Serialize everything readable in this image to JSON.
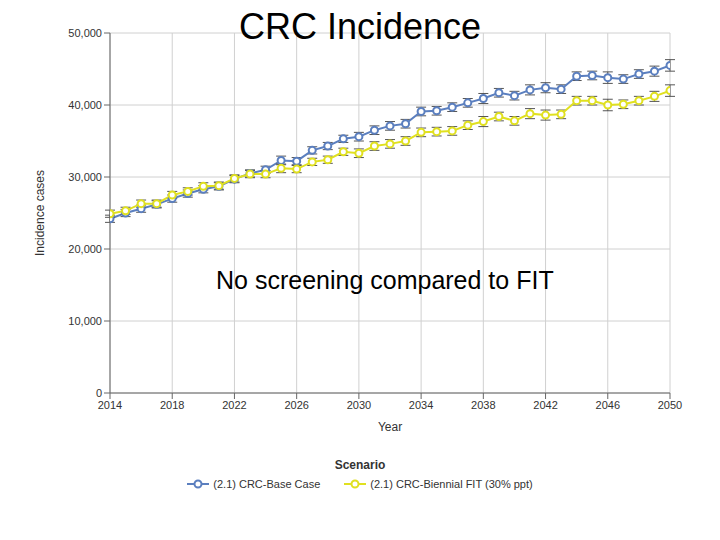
{
  "chart_data": {
    "type": "line",
    "title": "CRC Incidence",
    "annotation": "No screening compared to FIT",
    "x_label": "Year",
    "y_label": "Incidence cases",
    "legend_title": "Scenario",
    "x": [
      2014,
      2015,
      2016,
      2017,
      2018,
      2019,
      2020,
      2021,
      2022,
      2023,
      2024,
      2025,
      2026,
      2027,
      2028,
      2029,
      2030,
      2031,
      2032,
      2033,
      2034,
      2035,
      2036,
      2037,
      2038,
      2039,
      2040,
      2041,
      2042,
      2043,
      2044,
      2045,
      2046,
      2047,
      2048,
      2049,
      2050
    ],
    "series": [
      {
        "name": "(2.1) CRC-Base Case",
        "color": "#5b7fbf",
        "marker": "circle",
        "values": [
          24200,
          25000,
          25600,
          26200,
          27000,
          27700,
          28300,
          28700,
          29700,
          30500,
          31000,
          32300,
          32200,
          33700,
          34300,
          35300,
          35600,
          36500,
          37100,
          37400,
          39100,
          39200,
          39700,
          40300,
          40900,
          41700,
          41300,
          42100,
          42400,
          42200,
          44000,
          44100,
          43800,
          43600,
          44300,
          44700,
          45500
        ],
        "errors": [
          500,
          500,
          500,
          500,
          500,
          500,
          500,
          500,
          500,
          500,
          500,
          600,
          500,
          500,
          500,
          500,
          600,
          600,
          600,
          600,
          600,
          600,
          600,
          600,
          700,
          600,
          600,
          700,
          700,
          600,
          600,
          600,
          800,
          600,
          600,
          700,
          800
        ]
      },
      {
        "name": "(2.1) CRC-Biennial FIT (30% ppt)",
        "color": "#e0e020",
        "marker": "circle",
        "values": [
          24900,
          25300,
          26300,
          26300,
          27500,
          28000,
          28700,
          28800,
          29800,
          30400,
          30400,
          31200,
          31100,
          32100,
          32400,
          33500,
          33300,
          34300,
          34600,
          35000,
          36200,
          36300,
          36400,
          37200,
          37700,
          38400,
          37800,
          38800,
          38600,
          38700,
          40600,
          40600,
          40000,
          40100,
          40600,
          41200,
          42000
        ],
        "errors": [
          500,
          500,
          500,
          500,
          500,
          500,
          500,
          500,
          500,
          500,
          500,
          600,
          500,
          500,
          500,
          500,
          600,
          600,
          600,
          600,
          600,
          600,
          600,
          600,
          700,
          600,
          600,
          700,
          700,
          600,
          600,
          600,
          800,
          600,
          600,
          700,
          800
        ]
      }
    ],
    "xlim": [
      2014,
      2050
    ],
    "xticks": [
      2014,
      2018,
      2022,
      2026,
      2030,
      2034,
      2038,
      2042,
      2046,
      2050
    ],
    "ylim": [
      0,
      50000
    ],
    "yticks": [
      0,
      {
        "value": 10000,
        "label": "10,000"
      },
      {
        "value": 20000,
        "label": "20,000"
      },
      {
        "value": 30000,
        "label": "30,000"
      },
      {
        "value": 40000,
        "label": "40,000"
      },
      {
        "value": 50000,
        "label": "50,000"
      }
    ],
    "grid": true,
    "legend": "bottom"
  }
}
